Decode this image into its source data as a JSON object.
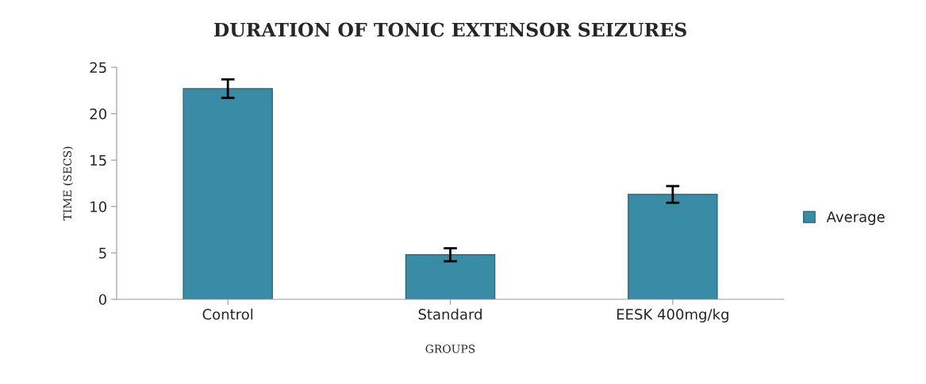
{
  "chart_data": {
    "type": "bar",
    "title": "DURATION OF TONIC EXTENSOR SEIZURES",
    "xlabel": "GROUPS",
    "ylabel": "TIME (SECS)",
    "categories": [
      "Control",
      "Standard",
      "EESK 400mg/kg"
    ],
    "series": [
      {
        "name": "Average",
        "color": "#388ca5",
        "values": [
          22.7,
          4.8,
          11.3
        ],
        "errors": [
          1.0,
          0.7,
          0.9
        ]
      }
    ],
    "ylim": [
      0,
      25
    ],
    "yticks": [
      0,
      5,
      10,
      15,
      20,
      25
    ],
    "grid": false,
    "legend": "right"
  }
}
